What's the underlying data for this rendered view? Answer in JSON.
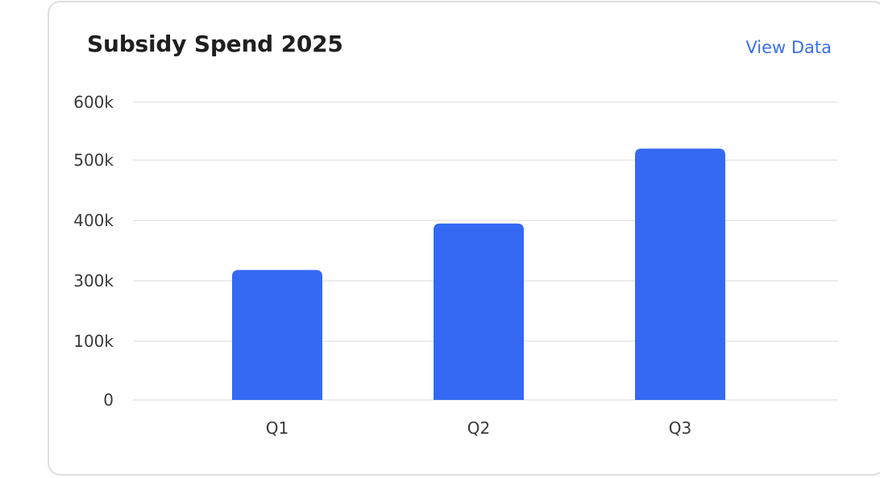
{
  "card": {
    "title": "Subsidy Spend 2025",
    "view_link": "View Data"
  },
  "chart_data": {
    "type": "bar",
    "title": "Subsidy Spend 2025",
    "categories": [
      "Q1",
      "Q2",
      "Q3"
    ],
    "values": [
      318000,
      395000,
      520000
    ],
    "y_ticks": [
      {
        "value": 0,
        "label": "0"
      },
      {
        "value": 100000,
        "label": "100k"
      },
      {
        "value": 300000,
        "label": "300k"
      },
      {
        "value": 400000,
        "label": "400k"
      },
      {
        "value": 500000,
        "label": "500k"
      },
      {
        "value": 600000,
        "label": "600k"
      }
    ],
    "ylim": [
      0,
      600000
    ],
    "xlabel": "",
    "ylabel": "",
    "grid": true,
    "bar_color": "#3569f3",
    "grid_color": "#ececec"
  }
}
